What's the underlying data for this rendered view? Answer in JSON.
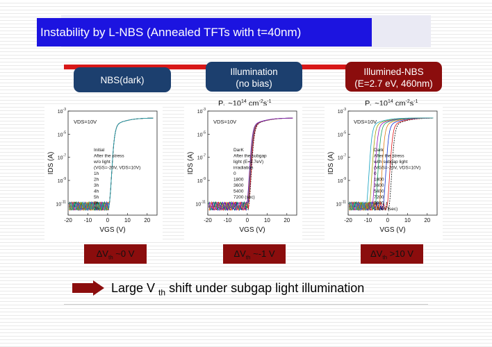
{
  "slide": {
    "title": "Instability by L-NBS (Annealed TFTs with t=40nm)",
    "colors": {
      "title_bar": "#1c14e0",
      "navy_box": "#1c3f6e",
      "maroon_box": "#8b0d0d",
      "red_stripe": "#d81818"
    }
  },
  "conditions": [
    {
      "line1": "NBS(dark)",
      "line2": ""
    },
    {
      "line1": "Illumination",
      "line2": "(no bias)"
    },
    {
      "line1": "Illumined-NBS",
      "line2": "(E=2.7 eV,   460nm)"
    }
  ],
  "flux": {
    "symbol": "P",
    "sub": "h",
    "text": " ~10",
    "exp": "14",
    "units": " cm",
    "u_exp1": "-2",
    "units2": "s",
    "u_exp2": "-1"
  },
  "shifts": [
    {
      "prefix": "ΔV",
      "sub": "th",
      "value": " ~0 V"
    },
    {
      "prefix": "ΔV",
      "sub": "th",
      "value": " ~-1 V"
    },
    {
      "prefix": "ΔV",
      "sub": "th",
      "value": " >10 V"
    }
  ],
  "conclusion": {
    "part1": "Large V ",
    "sub": "th",
    "part2": " shift under subgap light illumination"
  },
  "chart_data": [
    {
      "type": "line",
      "xlabel": "VGS (V)",
      "ylabel": "IDS (A)",
      "xlim": [
        -20,
        25
      ],
      "ylim_log10": [
        -12,
        -3
      ],
      "x_ticks": [
        "-20",
        "-10",
        "0",
        "10",
        "20"
      ],
      "y_ticks": [
        "10-11",
        "10-9",
        "10-7",
        "10-5",
        "10-3"
      ],
      "annotation": "VDS=10V",
      "legend_lines": [
        "Initial",
        "After the stress",
        "w/o light",
        "(VGS=-20V, VDS=10V)",
        "1h",
        "2h",
        "3h",
        "4h",
        "5h",
        "6h",
        "7h"
      ],
      "series": [
        {
          "name": "Initial",
          "vth": 0.0
        },
        {
          "name": "1h",
          "vth": 0.0
        },
        {
          "name": "2h",
          "vth": 0.0
        },
        {
          "name": "3h",
          "vth": 0.0
        },
        {
          "name": "4h",
          "vth": 0.0
        },
        {
          "name": "5h",
          "vth": 0.0
        },
        {
          "name": "6h",
          "vth": 0.0
        },
        {
          "name": "7h",
          "vth": 0.0
        }
      ]
    },
    {
      "type": "line",
      "xlabel": "VGS (V)",
      "ylabel": "IDS (A)",
      "xlim": [
        -20,
        25
      ],
      "ylim_log10": [
        -12,
        -3
      ],
      "x_ticks": [
        "-20",
        "-10",
        "0",
        "10",
        "20"
      ],
      "y_ticks": [
        "10-11",
        "10-9",
        "10-7",
        "10-5",
        "10-3"
      ],
      "annotation": "VDS=10V",
      "legend_lines": [
        "DarK",
        "After the subgap",
        "light (E=2.7eV)",
        "irradiation",
        "0",
        "1800",
        "3600",
        "5400",
        "7200 (sec)"
      ],
      "series": [
        {
          "name": "DarK",
          "vth": 0.0
        },
        {
          "name": "0",
          "vth": -0.2
        },
        {
          "name": "1800",
          "vth": -0.5
        },
        {
          "name": "3600",
          "vth": -0.7
        },
        {
          "name": "5400",
          "vth": -0.9
        },
        {
          "name": "7200 (sec)",
          "vth": -1.0
        }
      ]
    },
    {
      "type": "line",
      "xlabel": "VGS (V)",
      "ylabel": "IDS (A)",
      "xlim": [
        -20,
        25
      ],
      "ylim_log10": [
        -12,
        -3
      ],
      "x_ticks": [
        "-20",
        "-10",
        "0",
        "10",
        "20"
      ],
      "y_ticks": [
        "10-11",
        "10-9",
        "10-7",
        "10-5",
        "10-3"
      ],
      "annotation": "VDS=10V",
      "legend_lines": [
        "Dark",
        "After the stress",
        "with subgap light",
        "(VGS=-20V, VDS=10V)",
        "0",
        "1800",
        "3600",
        "5400",
        "7200",
        "9000",
        "10800 (sec)"
      ],
      "series": [
        {
          "name": "Dark",
          "vth": 0.0
        },
        {
          "name": "0",
          "vth": -1.0
        },
        {
          "name": "1800",
          "vth": -3.0
        },
        {
          "name": "3600",
          "vth": -5.0
        },
        {
          "name": "5400",
          "vth": -7.0
        },
        {
          "name": "7200",
          "vth": -8.5
        },
        {
          "name": "9000",
          "vth": -10.0
        },
        {
          "name": "10800 (sec)",
          "vth": -11.5
        }
      ]
    }
  ]
}
